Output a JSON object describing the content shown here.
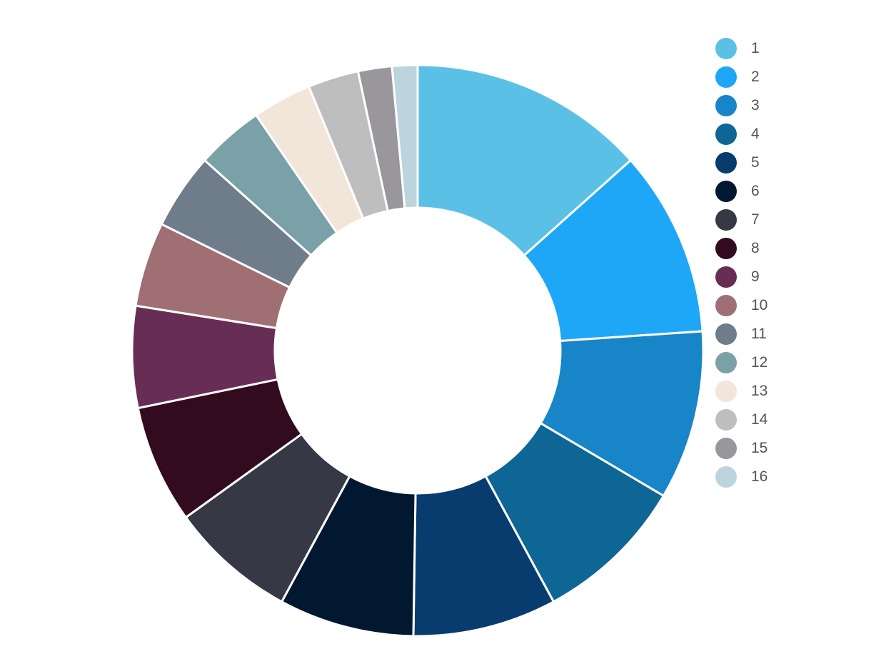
{
  "chart_data": {
    "type": "pie",
    "donut": true,
    "title": "",
    "start_angle_deg": 0,
    "direction": "clockwise",
    "legend_position": "right",
    "slice_stroke_color": "#ffffff",
    "categories": [
      "1",
      "2",
      "3",
      "4",
      "5",
      "6",
      "7",
      "8",
      "9",
      "10",
      "11",
      "12",
      "13",
      "14",
      "15",
      "16"
    ],
    "values": [
      14.0,
      11.0,
      10.0,
      9.0,
      8.5,
      8.0,
      7.5,
      7.0,
      6.0,
      5.0,
      4.5,
      4.0,
      3.5,
      3.0,
      2.0,
      1.5
    ],
    "colors": [
      "#5bc0e6",
      "#1ea7f7",
      "#1885c8",
      "#0e6694",
      "#083b6e",
      "#021830",
      "#363945",
      "#320b1f",
      "#682d55",
      "#9f6f74",
      "#6f7d8a",
      "#7aa1a7",
      "#f2e5da",
      "#bebebe",
      "#9a979c",
      "#bcd4dd"
    ]
  }
}
